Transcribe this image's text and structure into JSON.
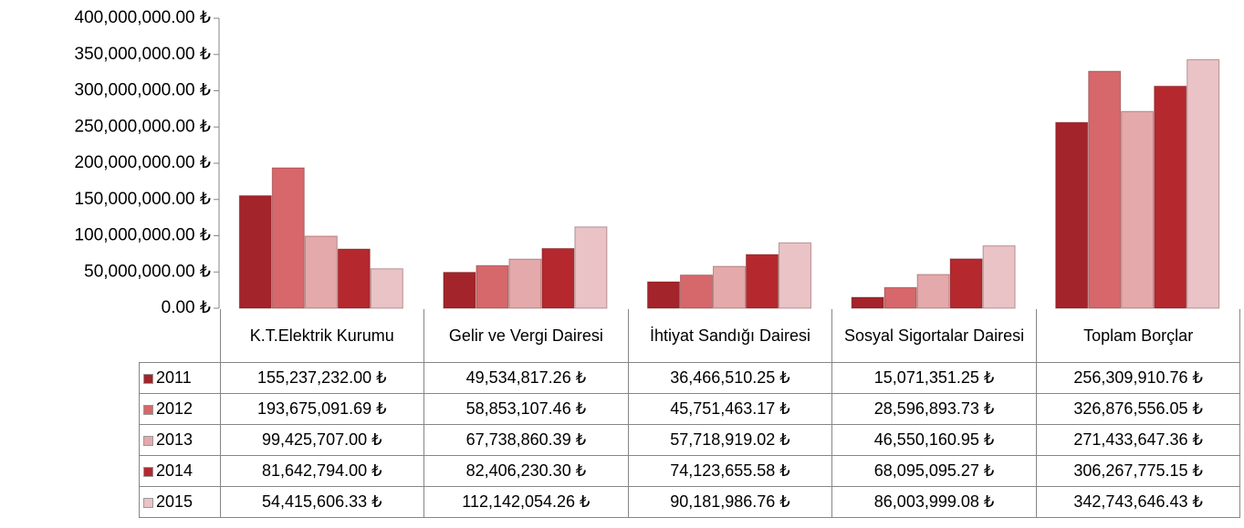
{
  "chart_data": {
    "type": "bar",
    "categories": [
      "K.T.Elektrik Kurumu",
      "Gelir ve Vergi Dairesi",
      "İhtiyat Sandığı Dairesi",
      "Sosyal Sigortalar Dairesi",
      "Toplam Borçlar"
    ],
    "series": [
      {
        "name": "2011",
        "color": "#a3242a",
        "values": [
          155237232.0,
          49534817.26,
          36466510.25,
          15071351.25,
          256309910.76
        ],
        "value_labels": [
          "155,237,232.00 ₺",
          "49,534,817.26 ₺",
          "36,466,510.25 ₺",
          "15,071,351.25 ₺",
          "256,309,910.76 ₺"
        ]
      },
      {
        "name": "2012",
        "color": "#d6676b",
        "values": [
          193675091.69,
          58853107.46,
          45751463.17,
          28596893.73,
          326876556.05
        ],
        "value_labels": [
          "193,675,091.69 ₺",
          "58,853,107.46 ₺",
          "45,751,463.17 ₺",
          "28,596,893.73 ₺",
          "326,876,556.05 ₺"
        ]
      },
      {
        "name": "2013",
        "color": "#e4a9aa",
        "values": [
          99425707.0,
          67738860.39,
          57718919.02,
          46550160.95,
          271433647.36
        ],
        "value_labels": [
          "99,425,707.00 ₺",
          "67,738,860.39 ₺",
          "57,718,919.02 ₺",
          "46,550,160.95 ₺",
          "271,433,647.36 ₺"
        ]
      },
      {
        "name": "2014",
        "color": "#b4282e",
        "values": [
          81642794.0,
          82406230.3,
          74123655.58,
          68095095.27,
          306267775.15
        ],
        "value_labels": [
          "81,642,794.00 ₺",
          "82,406,230.30 ₺",
          "74,123,655.58 ₺",
          "68,095,095.27 ₺",
          "306,267,775.15 ₺"
        ]
      },
      {
        "name": "2015",
        "color": "#e9c3c6",
        "values": [
          54415606.33,
          112142054.26,
          90181986.76,
          86003999.08,
          342743646.43
        ],
        "value_labels": [
          "54,415,606.33 ₺",
          "112,142,054.26 ₺",
          "90,181,986.76 ₺",
          "86,003,999.08 ₺",
          "342,743,646.43 ₺"
        ]
      }
    ],
    "ylim": [
      0,
      400000000
    ],
    "yticks": [
      {
        "value": 0,
        "label": "0.00 ₺"
      },
      {
        "value": 50000000,
        "label": "50,000,000.00 ₺"
      },
      {
        "value": 100000000,
        "label": "100,000,000.00 ₺"
      },
      {
        "value": 150000000,
        "label": "150,000,000.00 ₺"
      },
      {
        "value": 200000000,
        "label": "200,000,000.00 ₺"
      },
      {
        "value": 250000000,
        "label": "250,000,000.00 ₺"
      },
      {
        "value": 300000000,
        "label": "300,000,000.00 ₺"
      },
      {
        "value": 350000000,
        "label": "350,000,000.00 ₺"
      },
      {
        "value": 400000000,
        "label": "400,000,000.00 ₺"
      }
    ],
    "grid": false
  }
}
